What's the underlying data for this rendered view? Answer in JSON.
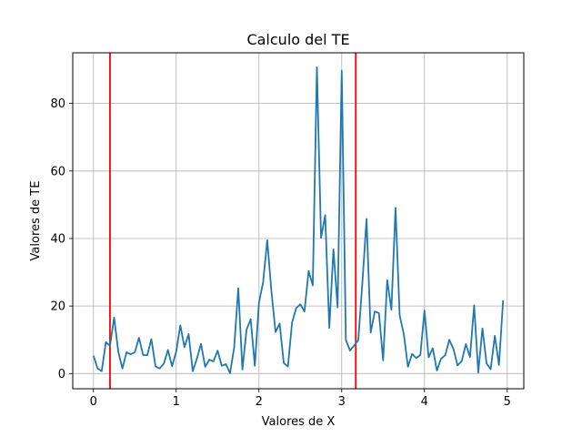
{
  "chart_data": {
    "type": "line",
    "title": "Calculo del TE",
    "xlabel": "Valores de X",
    "ylabel": "Valores de TE",
    "xlim": [
      -0.25,
      5.2
    ],
    "ylim": [
      -4.5,
      95
    ],
    "xticks": [
      0,
      1,
      2,
      3,
      4,
      5
    ],
    "xtick_labels": [
      "0",
      "1",
      "2",
      "3",
      "4",
      "5"
    ],
    "yticks": [
      0,
      20,
      40,
      60,
      80
    ],
    "ytick_labels": [
      "0",
      "20",
      "40",
      "60",
      "80"
    ],
    "grid": true,
    "line_color": "#1f77b4",
    "vline_color": "#ff0000",
    "vlines": [
      0.2,
      3.17
    ],
    "series": [
      {
        "x": [
          0.0,
          0.05,
          0.1,
          0.15,
          0.2,
          0.25,
          0.3,
          0.35,
          0.4,
          0.45,
          0.5,
          0.55,
          0.6,
          0.65,
          0.7,
          0.75,
          0.8,
          0.85,
          0.9,
          0.95,
          1.0,
          1.05,
          1.1,
          1.15,
          1.2,
          1.25,
          1.3,
          1.35,
          1.4,
          1.45,
          1.5,
          1.55,
          1.6,
          1.65,
          1.7,
          1.75,
          1.8,
          1.85,
          1.9,
          1.95,
          2.0,
          2.05,
          2.1,
          2.15,
          2.2,
          2.25,
          2.3,
          2.35,
          2.4,
          2.45,
          2.5,
          2.55,
          2.6,
          2.65,
          2.7,
          2.75,
          2.8,
          2.85,
          2.9,
          2.95,
          3.0,
          3.05,
          3.1,
          3.15,
          3.2,
          3.25,
          3.3,
          3.35,
          3.4,
          3.45,
          3.5,
          3.55,
          3.6,
          3.65,
          3.7,
          3.75,
          3.8,
          3.85,
          3.9,
          3.95,
          4.0,
          4.05,
          4.1,
          4.15,
          4.2,
          4.25,
          4.3,
          4.35,
          4.4,
          4.45,
          4.5,
          4.55,
          4.6,
          4.65,
          4.7,
          4.75,
          4.8,
          4.85,
          4.9,
          4.95
        ],
        "values": [
          5.3,
          1.5,
          0.7,
          9.3,
          8.2,
          16.6,
          6.5,
          1.5,
          6.3,
          5.7,
          6.3,
          10.6,
          5.5,
          5.4,
          10.2,
          2.1,
          1.5,
          2.9,
          7.0,
          2.2,
          6.5,
          14.3,
          7.8,
          11.7,
          0.7,
          4.4,
          8.8,
          2.0,
          4.1,
          3.6,
          6.8,
          2.3,
          2.8,
          0.1,
          7.6,
          25.3,
          1.2,
          13.0,
          16.1,
          2.3,
          21.0,
          27.0,
          39.5,
          24.5,
          12.3,
          14.8,
          3.1,
          2.1,
          15.1,
          19.4,
          20.5,
          18.4,
          30.4,
          26.1,
          90.7,
          40.2,
          46.9,
          13.5,
          36.8,
          19.6,
          89.7,
          10.0,
          6.8,
          8.3,
          9.9,
          27.0,
          45.8,
          12.1,
          18.4,
          17.9,
          3.9,
          27.7,
          18.9,
          49.1,
          17.2,
          11.7,
          2.0,
          5.8,
          4.6,
          5.5,
          18.7,
          4.8,
          7.5,
          0.9,
          4.4,
          5.4,
          10.0,
          7.3,
          2.4,
          3.7,
          8.7,
          4.9,
          20.2,
          0.3,
          13.4,
          3.0,
          1.3,
          11.2,
          2.5,
          21.7
        ]
      }
    ]
  }
}
